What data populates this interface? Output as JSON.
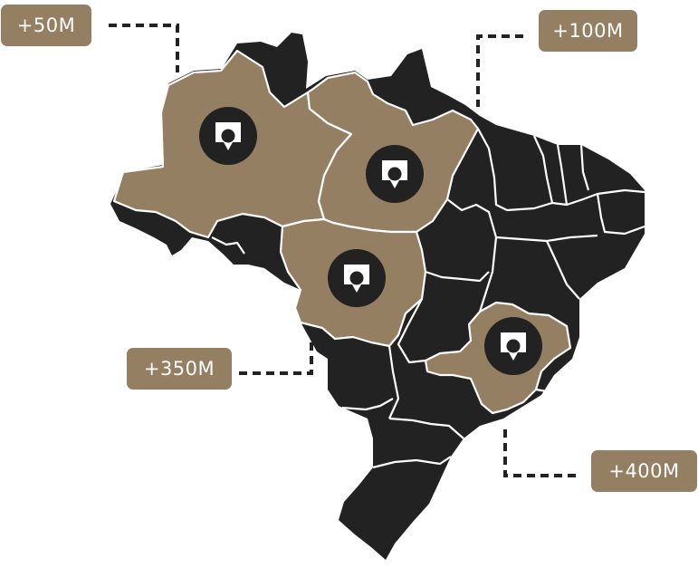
{
  "colors": {
    "region_highlight": "#947f62",
    "region_dark": "#222222",
    "border": "#ffffff",
    "badge_bg": "#947f62",
    "badge_text": "#ffffff",
    "connector": "#222222",
    "marker_circle": "#222222",
    "marker_pin": "#ffffff"
  },
  "marker_icon": "map-pin-icon",
  "callouts": [
    {
      "id": "badge-1",
      "label": "+50M"
    },
    {
      "id": "badge-2",
      "label": "+100M"
    },
    {
      "id": "badge-3",
      "label": "+350M"
    },
    {
      "id": "badge-4",
      "label": "+400M"
    }
  ]
}
